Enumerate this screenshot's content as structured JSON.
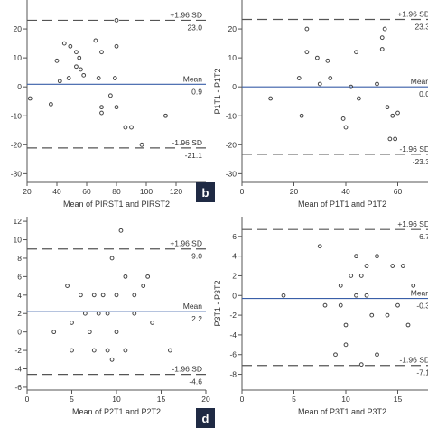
{
  "chart_data": [
    {
      "type": "scatter",
      "panel_label": "",
      "xlabel": "Mean of PIRST1 and PIRST2",
      "ylabel": "",
      "xlim": [
        20,
        140
      ],
      "ylim": [
        -33,
        30
      ],
      "xticks": [
        20,
        40,
        60,
        80,
        100,
        120,
        140
      ],
      "yticks": [
        20,
        10,
        0,
        -10,
        -20,
        -30
      ],
      "mean": 0.9,
      "upper": 23.0,
      "lower": -21.1,
      "upper_label": "+1.96 SD",
      "mean_label": "Mean",
      "lower_label": "-1.96 SD",
      "upper_value": "23.0",
      "mean_value": "0.9",
      "lower_value": "-21.1",
      "points": [
        {
          "x": 22,
          "y": -4
        },
        {
          "x": 36,
          "y": -6
        },
        {
          "x": 40,
          "y": 9
        },
        {
          "x": 42,
          "y": 2
        },
        {
          "x": 45,
          "y": 15
        },
        {
          "x": 49,
          "y": 14
        },
        {
          "x": 48,
          "y": 3
        },
        {
          "x": 53,
          "y": 12
        },
        {
          "x": 53,
          "y": 7
        },
        {
          "x": 55,
          "y": 10
        },
        {
          "x": 56,
          "y": 6
        },
        {
          "x": 58,
          "y": 4
        },
        {
          "x": 66,
          "y": 16
        },
        {
          "x": 70,
          "y": 12
        },
        {
          "x": 68,
          "y": 3
        },
        {
          "x": 70,
          "y": -7
        },
        {
          "x": 70,
          "y": -9
        },
        {
          "x": 76,
          "y": -3
        },
        {
          "x": 79,
          "y": 3
        },
        {
          "x": 80,
          "y": 23
        },
        {
          "x": 80,
          "y": 14
        },
        {
          "x": 80,
          "y": -7
        },
        {
          "x": 86,
          "y": -14
        },
        {
          "x": 90,
          "y": -14
        },
        {
          "x": 97,
          "y": -20
        },
        {
          "x": 113,
          "y": -10
        }
      ]
    },
    {
      "type": "scatter",
      "panel_label": "b",
      "xlabel": "Mean of P1T1 and P1T2",
      "ylabel": "P1T1 - P1T2",
      "xlim": [
        0,
        80
      ],
      "ylim": [
        -33,
        30
      ],
      "xticks": [
        0,
        20,
        40,
        60
      ],
      "yticks": [
        20,
        10,
        0,
        -10,
        -20,
        -30
      ],
      "mean": 0.0,
      "upper": 23.3,
      "lower": -23.3,
      "upper_label": "+1.96 SD",
      "mean_label": "Mean",
      "lower_label": "-1.96 SD",
      "upper_value": "23.3",
      "mean_value": "0.0",
      "lower_value": "-23.3",
      "points": [
        {
          "x": 11,
          "y": -4
        },
        {
          "x": 22,
          "y": 3
        },
        {
          "x": 23,
          "y": -10
        },
        {
          "x": 25,
          "y": 20
        },
        {
          "x": 25,
          "y": 12
        },
        {
          "x": 29,
          "y": 10
        },
        {
          "x": 30,
          "y": 1
        },
        {
          "x": 33,
          "y": 9
        },
        {
          "x": 34,
          "y": 3
        },
        {
          "x": 39,
          "y": -11
        },
        {
          "x": 40,
          "y": -14
        },
        {
          "x": 42,
          "y": 0
        },
        {
          "x": 44,
          "y": 12
        },
        {
          "x": 45,
          "y": -4
        },
        {
          "x": 52,
          "y": 1
        },
        {
          "x": 54,
          "y": 17
        },
        {
          "x": 54,
          "y": 13
        },
        {
          "x": 55,
          "y": 20
        },
        {
          "x": 56,
          "y": -7
        },
        {
          "x": 57,
          "y": -18
        },
        {
          "x": 58,
          "y": -10
        },
        {
          "x": 59,
          "y": -18
        },
        {
          "x": 60,
          "y": -9
        }
      ]
    },
    {
      "type": "scatter",
      "panel_label": "",
      "xlabel": "Mean of P2T1 and P2T2",
      "ylabel": "",
      "xlim": [
        0,
        20
      ],
      "ylim": [
        -6.3,
        12.5
      ],
      "xticks": [
        0,
        5,
        10,
        15,
        20
      ],
      "yticks": [
        12,
        10,
        8,
        6,
        4,
        2,
        0,
        -2,
        -4,
        -6
      ],
      "mean": 2.2,
      "upper": 9.0,
      "lower": -4.6,
      "upper_label": "+1.96 SD",
      "mean_label": "Mean",
      "lower_label": "-1.96 SD",
      "upper_value": "9.0",
      "mean_value": "2.2",
      "lower_value": "-4.6",
      "points": [
        {
          "x": 3,
          "y": 0
        },
        {
          "x": 4.5,
          "y": 5
        },
        {
          "x": 5,
          "y": -2
        },
        {
          "x": 5,
          "y": 1
        },
        {
          "x": 6,
          "y": 4
        },
        {
          "x": 6.5,
          "y": 2
        },
        {
          "x": 7,
          "y": 0
        },
        {
          "x": 7.5,
          "y": -2
        },
        {
          "x": 7.5,
          "y": 4
        },
        {
          "x": 8,
          "y": 2
        },
        {
          "x": 8.5,
          "y": 4
        },
        {
          "x": 9,
          "y": -2
        },
        {
          "x": 9,
          "y": 2
        },
        {
          "x": 9.5,
          "y": 8
        },
        {
          "x": 9.5,
          "y": -3
        },
        {
          "x": 10,
          "y": 4
        },
        {
          "x": 10,
          "y": 0
        },
        {
          "x": 10.5,
          "y": 11
        },
        {
          "x": 11,
          "y": 6
        },
        {
          "x": 11,
          "y": -2
        },
        {
          "x": 12,
          "y": 2
        },
        {
          "x": 12,
          "y": 4
        },
        {
          "x": 13,
          "y": 5
        },
        {
          "x": 13.5,
          "y": 6
        },
        {
          "x": 14,
          "y": 1
        },
        {
          "x": 16,
          "y": -2
        }
      ]
    },
    {
      "type": "scatter",
      "panel_label": "d",
      "xlabel": "Mean of P3T1 and P3T2",
      "ylabel": "P3T1 - P3T2",
      "xlim": [
        0,
        20
      ],
      "ylim": [
        -9.6,
        8
      ],
      "xticks": [
        0,
        5,
        10,
        15
      ],
      "yticks": [
        6,
        4,
        2,
        0,
        -2,
        -4,
        -6,
        -8
      ],
      "mean": -0.3,
      "upper": 6.7,
      "lower": -7.1,
      "upper_label": "+1.96 SD",
      "mean_label": "Mean",
      "lower_label": "-1.96 SD",
      "upper_value": "6.7",
      "mean_value": "-0.3",
      "lower_value": "-7.1",
      "points": [
        {
          "x": 4,
          "y": 0
        },
        {
          "x": 7.5,
          "y": 5
        },
        {
          "x": 8,
          "y": -1
        },
        {
          "x": 9,
          "y": -6
        },
        {
          "x": 9.5,
          "y": -1
        },
        {
          "x": 9.5,
          "y": 1
        },
        {
          "x": 10,
          "y": -3
        },
        {
          "x": 10,
          "y": -5
        },
        {
          "x": 10.5,
          "y": 2
        },
        {
          "x": 11,
          "y": 4
        },
        {
          "x": 11,
          "y": 0
        },
        {
          "x": 11.5,
          "y": 2
        },
        {
          "x": 11.5,
          "y": -7
        },
        {
          "x": 12,
          "y": 3
        },
        {
          "x": 12,
          "y": 0
        },
        {
          "x": 12.5,
          "y": -2
        },
        {
          "x": 13,
          "y": 4
        },
        {
          "x": 13,
          "y": -6
        },
        {
          "x": 14,
          "y": -2
        },
        {
          "x": 14.5,
          "y": 3
        },
        {
          "x": 15,
          "y": -1
        },
        {
          "x": 15.5,
          "y": 3
        },
        {
          "x": 16,
          "y": -3
        },
        {
          "x": 16.5,
          "y": 1
        }
      ]
    }
  ]
}
